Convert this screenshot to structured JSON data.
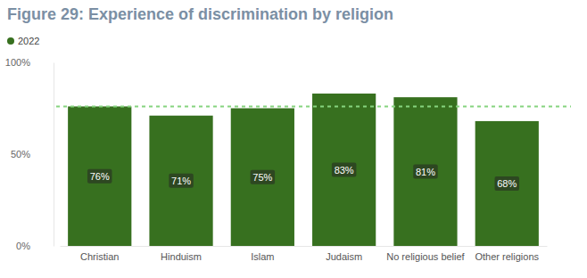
{
  "chart_data": {
    "type": "bar",
    "title": "Figure 29: Experience of discrimination by religion",
    "categories": [
      "Christian",
      "Hinduism",
      "Islam",
      "Judaism",
      "No religious belief",
      "Other religions"
    ],
    "series": [
      {
        "name": "2022",
        "color": "#37701f",
        "values": [
          76,
          71,
          75,
          83,
          81,
          68
        ],
        "value_labels": [
          "76%",
          "71%",
          "75%",
          "83%",
          "81%",
          "68%"
        ]
      }
    ],
    "reference_line": 76,
    "ylim": [
      0,
      100
    ],
    "yticks": [
      {
        "value": 0,
        "label": "0%"
      },
      {
        "value": 50,
        "label": "50%"
      },
      {
        "value": 100,
        "label": "100%"
      }
    ],
    "grid": false,
    "legend": "top-left",
    "data_labels": true
  }
}
